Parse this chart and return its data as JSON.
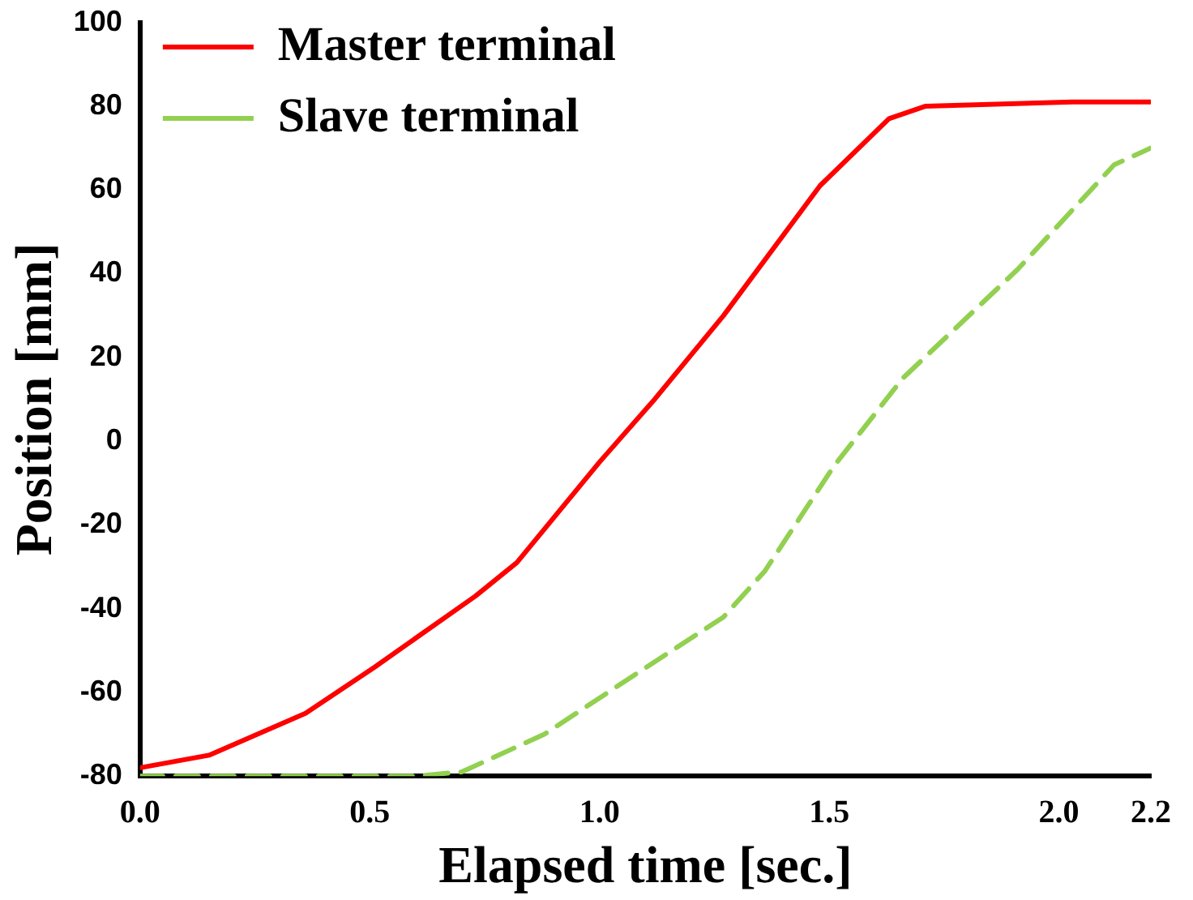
{
  "chart_data": {
    "type": "line",
    "xlabel": "Elapsed time [sec.]",
    "ylabel": "Position [mm]",
    "xlim": [
      0,
      2.2
    ],
    "xticks": [
      {
        "value": 0,
        "label": "0.0"
      },
      {
        "value": 0.5,
        "label": "0.5"
      },
      {
        "value": 1,
        "label": "1.0"
      },
      {
        "value": 1.5,
        "label": "1.5"
      },
      {
        "value": 2,
        "label": "2.0"
      },
      2.2
    ],
    "ylim": [
      -80,
      100
    ],
    "yticks": [
      -80,
      -60,
      -40,
      -20,
      0,
      20,
      40,
      60,
      80,
      100
    ],
    "grid": false,
    "legend": "top left",
    "marker": "none",
    "series": [
      {
        "name": "Master terminal",
        "color": "#ff0000",
        "line_style": "solid",
        "x": [
          0,
          0.15,
          0.36,
          0.51,
          0.73,
          0.82,
          1.0,
          1.12,
          1.27,
          1.48,
          1.63,
          1.71,
          2.03,
          2.2
        ],
        "values": [
          -78,
          -75,
          -65,
          -54,
          -37,
          -29,
          -5,
          10,
          30,
          61,
          77,
          80,
          81,
          81
        ]
      },
      {
        "name": "Slave terminal",
        "color": "#92d050",
        "line_style": "dashed",
        "x": [
          0,
          0.3,
          0.6,
          0.7,
          0.88,
          1.06,
          1.27,
          1.36,
          1.51,
          1.66,
          1.91,
          2.12,
          2.18,
          2.2
        ],
        "values": [
          -80,
          -80,
          -80,
          -79,
          -70,
          -57,
          -42,
          -31,
          -6,
          15,
          41,
          66,
          69,
          70
        ]
      }
    ]
  }
}
